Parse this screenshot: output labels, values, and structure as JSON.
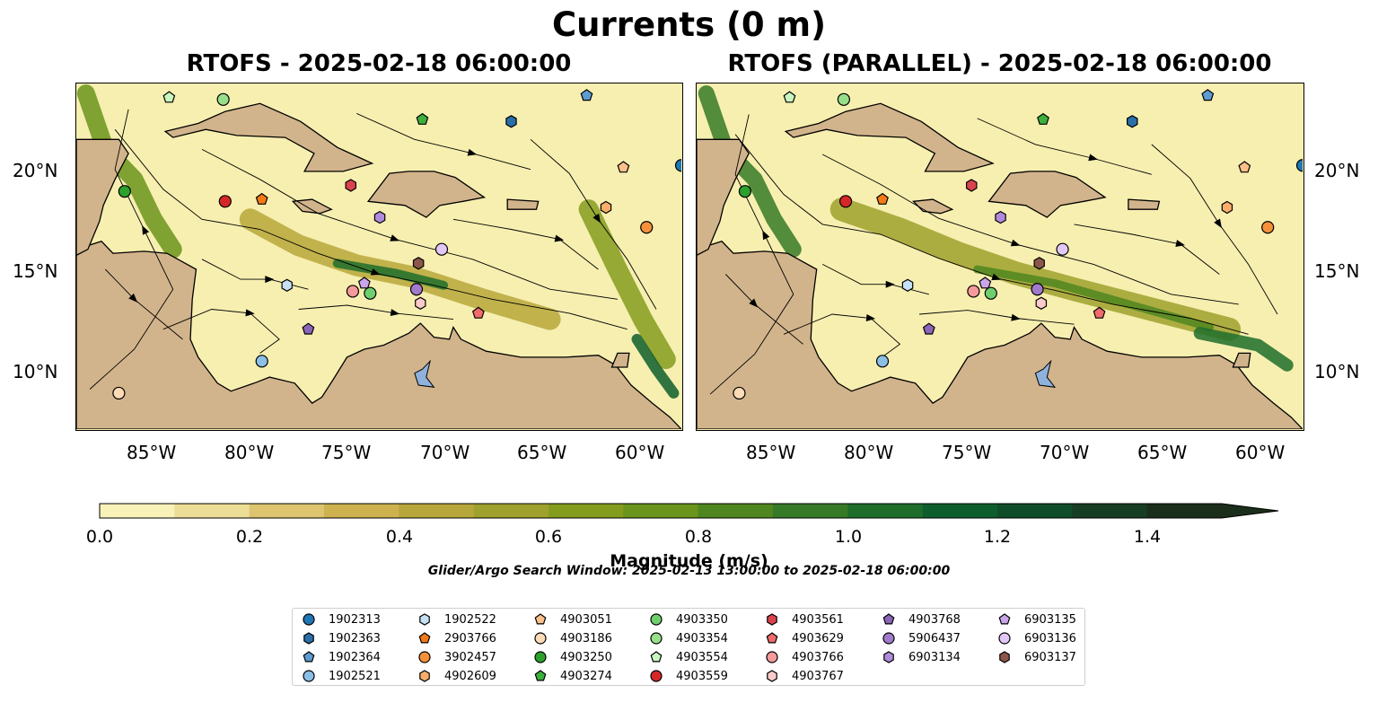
{
  "figure": {
    "title": "Currents (0 m)",
    "left_title": "RTOFS - 2025-02-18 06:00:00",
    "right_title": "RTOFS (PARALLEL) - 2025-02-18 06:00:00"
  },
  "map": {
    "lon_range": [
      -89.5,
      -58.2
    ],
    "lat_range": [
      7.0,
      24.3
    ],
    "lat_ticks": [
      "20°N",
      "15°N",
      "10°N"
    ],
    "lon_ticks": [
      "85°W",
      "80°W",
      "75°W",
      "70°W",
      "65°W",
      "60°W"
    ],
    "land_color": "#d2b48c",
    "lake_color": "#8fb2dc",
    "ocean_base_color": "#f7efb0"
  },
  "colorbar": {
    "label": "Magnitude (m/s)",
    "ticks": [
      "0.0",
      "0.2",
      "0.4",
      "0.6",
      "0.8",
      "1.0",
      "1.2",
      "1.4"
    ],
    "range": [
      0,
      1.5
    ],
    "extend": "max",
    "colors": [
      "#f8f2b9",
      "#ecdd97",
      "#ddc46e",
      "#cdb24f",
      "#b7a73b",
      "#9fa12e",
      "#849c1e",
      "#6b941c",
      "#4f8620",
      "#367a27",
      "#1f6d2b",
      "#0e5e2d",
      "#0f4d2a",
      "#173d25",
      "#1b2e1c"
    ]
  },
  "search_window": "Glider/Argo Search Window: 2025-02-13 13:00:00 to 2025-02-18 06:00:00",
  "legend": {
    "columns": [
      [
        {
          "id": "1902313",
          "marker": "circle",
          "color": "#1f77b4"
        },
        {
          "id": "1902363",
          "marker": "hexagon",
          "color": "#2b6fa8"
        },
        {
          "id": "1902364",
          "marker": "pentagon",
          "color": "#5e9bd1"
        },
        {
          "id": "1902521",
          "marker": "circle",
          "color": "#8cbfe6"
        }
      ],
      [
        {
          "id": "1902522",
          "marker": "hexagon",
          "color": "#c6e0f5"
        },
        {
          "id": "2903766",
          "marker": "pentagon",
          "color": "#f37a14"
        },
        {
          "id": "3902457",
          "marker": "circle",
          "color": "#f6913a"
        },
        {
          "id": "4902609",
          "marker": "hexagon",
          "color": "#fbae6b"
        }
      ],
      [
        {
          "id": "4903051",
          "marker": "pentagon",
          "color": "#fcc08a"
        },
        {
          "id": "4903186",
          "marker": "circle",
          "color": "#fddbb6"
        },
        {
          "id": "4903250",
          "marker": "circle",
          "color": "#2ca02c"
        },
        {
          "id": "4903274",
          "marker": "pentagon",
          "color": "#3cb03c"
        }
      ],
      [
        {
          "id": "4903350",
          "marker": "circle",
          "color": "#6fcf6f"
        },
        {
          "id": "4903354",
          "marker": "circle",
          "color": "#98df8a"
        },
        {
          "id": "4903554",
          "marker": "pentagon",
          "color": "#c9f5c0"
        },
        {
          "id": "4903559",
          "marker": "circle",
          "color": "#d62728"
        }
      ],
      [
        {
          "id": "4903561",
          "marker": "hexagon",
          "color": "#d9434e"
        },
        {
          "id": "4903629",
          "marker": "pentagon",
          "color": "#f06b6b"
        },
        {
          "id": "4903766",
          "marker": "circle",
          "color": "#f49a9a"
        },
        {
          "id": "4903767",
          "marker": "hexagon",
          "color": "#fbcaca"
        }
      ],
      [
        {
          "id": "4903768",
          "marker": "pentagon",
          "color": "#8c64b8"
        },
        {
          "id": "5906437",
          "marker": "circle",
          "color": "#a27acb"
        },
        {
          "id": "6903134",
          "marker": "hexagon",
          "color": "#b18bdb"
        }
      ],
      [
        {
          "id": "6903135",
          "marker": "pentagon",
          "color": "#c9a6ea"
        },
        {
          "id": "6903136",
          "marker": "circle",
          "color": "#e3c8f7"
        },
        {
          "id": "6903137",
          "marker": "hexagon",
          "color": "#8c564b"
        }
      ]
    ]
  },
  "floats": [
    {
      "id": "1902313",
      "lon": -58.2,
      "lat": 20.2
    },
    {
      "id": "1902363",
      "lon": -67.0,
      "lat": 22.4
    },
    {
      "id": "1902364",
      "lon": -63.1,
      "lat": 23.7
    },
    {
      "id": "1902521",
      "lon": -79.9,
      "lat": 10.4
    },
    {
      "id": "1902522",
      "lon": -78.6,
      "lat": 14.2
    },
    {
      "id": "2903766",
      "lon": -79.9,
      "lat": 18.5
    },
    {
      "id": "3902457",
      "lon": -60.0,
      "lat": 17.1
    },
    {
      "id": "4902609",
      "lon": -62.1,
      "lat": 18.1
    },
    {
      "id": "4903051",
      "lon": -61.2,
      "lat": 20.1
    },
    {
      "id": "4903186",
      "lon": -87.3,
      "lat": 8.8
    },
    {
      "id": "4903250",
      "lon": -87.0,
      "lat": 18.9
    },
    {
      "id": "4903274",
      "lon": -71.6,
      "lat": 22.5
    },
    {
      "id": "4903350",
      "lon": -74.3,
      "lat": 13.8
    },
    {
      "id": "4903354",
      "lon": -81.9,
      "lat": 23.5
    },
    {
      "id": "4903554",
      "lon": -84.7,
      "lat": 23.6
    },
    {
      "id": "4903559",
      "lon": -81.8,
      "lat": 18.4
    },
    {
      "id": "4903561",
      "lon": -75.3,
      "lat": 19.2
    },
    {
      "id": "4903629",
      "lon": -68.7,
      "lat": 12.8
    },
    {
      "id": "4903766",
      "lon": -75.2,
      "lat": 13.9
    },
    {
      "id": "4903767",
      "lon": -71.7,
      "lat": 13.3
    },
    {
      "id": "4903768",
      "lon": -77.5,
      "lat": 12.0
    },
    {
      "id": "5906437",
      "lon": -71.9,
      "lat": 14.0
    },
    {
      "id": "6903134",
      "lon": -73.8,
      "lat": 17.6
    },
    {
      "id": "6903135",
      "lon": -74.6,
      "lat": 14.3
    },
    {
      "id": "6903136",
      "lon": -70.6,
      "lat": 16.0
    },
    {
      "id": "6903137",
      "lon": -71.8,
      "lat": 15.3
    }
  ]
}
